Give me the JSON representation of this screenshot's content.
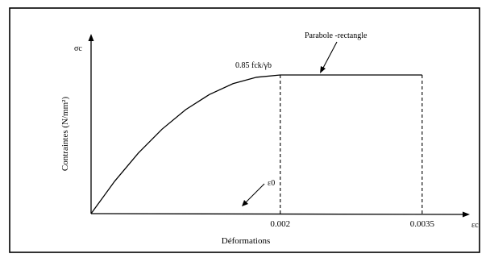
{
  "chart_data": {
    "type": "line",
    "ylabel": "Contraintes (N/mm²)",
    "xlabel": "Déformations",
    "y_axis_symbol": "σc",
    "x_axis_symbol": "εc",
    "x_ticks": [
      "0.002",
      "0.0035"
    ],
    "plateau_label": "0.85 fck/γb",
    "curve_label": "Parabole -rectangle",
    "strain_marker_label": "ε0",
    "xlim": [
      0,
      0.004
    ],
    "ylim": [
      0,
      1.25
    ],
    "series": [
      {
        "x": [
          0,
          0.00025,
          0.0005,
          0.00075,
          0.001,
          0.00125,
          0.0015,
          0.00175,
          0.002,
          0.0035
        ],
        "values": [
          0,
          0.234,
          0.4375,
          0.609,
          0.75,
          0.859,
          0.9375,
          0.984,
          1.0,
          1.0
        ]
      }
    ]
  }
}
